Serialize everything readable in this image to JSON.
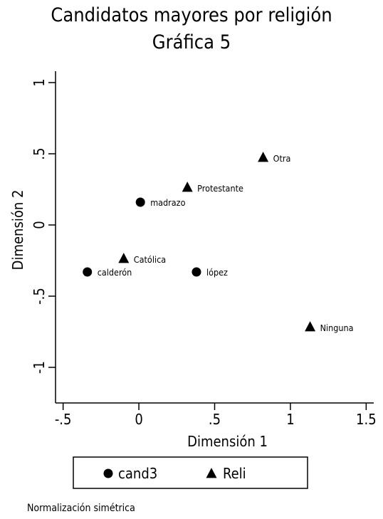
{
  "chart_data": {
    "type": "scatter",
    "title": "Candidatos mayores por religión",
    "subtitle": "Gráfica 5",
    "xlabel": "Dimensión 1",
    "ylabel": "Dimensión 2",
    "xlim": [
      -0.55,
      1.55
    ],
    "ylim": [
      -1.25,
      1.08
    ],
    "x_ticks": [
      {
        "value": -0.5,
        "label": "-.5"
      },
      {
        "value": 0,
        "label": "0"
      },
      {
        "value": 0.5,
        "label": ".5"
      },
      {
        "value": 1,
        "label": "1"
      },
      {
        "value": 1.5,
        "label": "1.5"
      }
    ],
    "y_ticks": [
      {
        "value": -1,
        "label": "-1"
      },
      {
        "value": -0.5,
        "label": "-.5"
      },
      {
        "value": 0,
        "label": "0"
      },
      {
        "value": 0.5,
        "label": ".5"
      },
      {
        "value": 1,
        "label": "1"
      }
    ],
    "series": [
      {
        "name": "cand3",
        "marker": "circle",
        "points": [
          {
            "x": 0.01,
            "y": 0.16,
            "label": "madrazo"
          },
          {
            "x": -0.34,
            "y": -0.33,
            "label": "calderón"
          },
          {
            "x": 0.38,
            "y": -0.33,
            "label": "lópez"
          }
        ]
      },
      {
        "name": "Reli",
        "marker": "triangle",
        "points": [
          {
            "x": 0.82,
            "y": 0.47,
            "label": "Otra"
          },
          {
            "x": 0.32,
            "y": 0.26,
            "label": "Protestante"
          },
          {
            "x": -0.1,
            "y": -0.24,
            "label": "Católica"
          },
          {
            "x": 1.13,
            "y": -0.72,
            "label": "Ninguna"
          }
        ]
      }
    ],
    "legend_position": "bottom",
    "grid": false,
    "footnote": "Normalización simétrica",
    "colors": {
      "marker": "#000000"
    }
  }
}
